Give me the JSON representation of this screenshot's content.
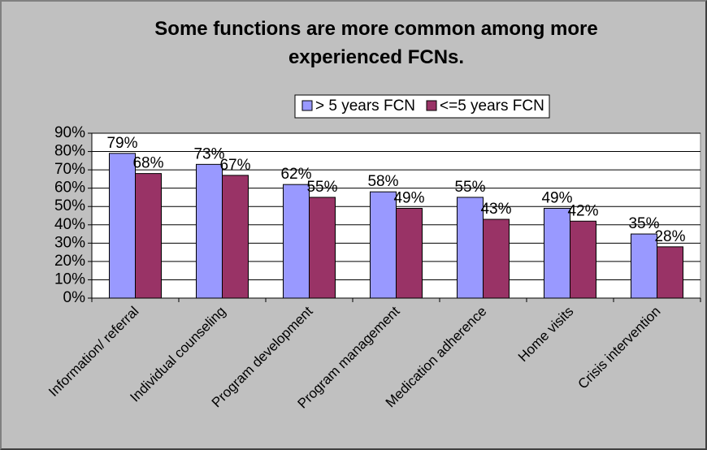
{
  "chart_data": {
    "type": "bar",
    "title": "Some functions are more common among more experienced FCNs.",
    "categories": [
      "Information/ referral",
      "Individual counseling",
      "Program development",
      "Program management",
      "Medication adherence",
      "Home visits",
      "Crisis intervention"
    ],
    "series": [
      {
        "name": "> 5 years FCN",
        "color": "#9999ff",
        "values": [
          79,
          73,
          62,
          58,
          55,
          49,
          35
        ],
        "value_labels": [
          "79%",
          "73%",
          "62%",
          "58%",
          "55%",
          "49%",
          "35%"
        ]
      },
      {
        "name": "<=5 years FCN",
        "color": "#993366",
        "values": [
          68,
          67,
          55,
          49,
          43,
          42,
          28
        ],
        "value_labels": [
          "68%",
          "67%",
          "55%",
          "49%",
          "43%",
          "42%",
          "28%"
        ]
      }
    ],
    "ylim": [
      0,
      90
    ],
    "yticks": [
      {
        "value": 0,
        "label": "0%"
      },
      {
        "value": 10,
        "label": "10%"
      },
      {
        "value": 20,
        "label": "20%"
      },
      {
        "value": 30,
        "label": "30%"
      },
      {
        "value": 40,
        "label": "40%"
      },
      {
        "value": 50,
        "label": "50%"
      },
      {
        "value": 60,
        "label": "60%"
      },
      {
        "value": 70,
        "label": "70%"
      },
      {
        "value": 80,
        "label": "80%"
      },
      {
        "value": 90,
        "label": "90%"
      }
    ],
    "grid": true,
    "legend": "top"
  }
}
